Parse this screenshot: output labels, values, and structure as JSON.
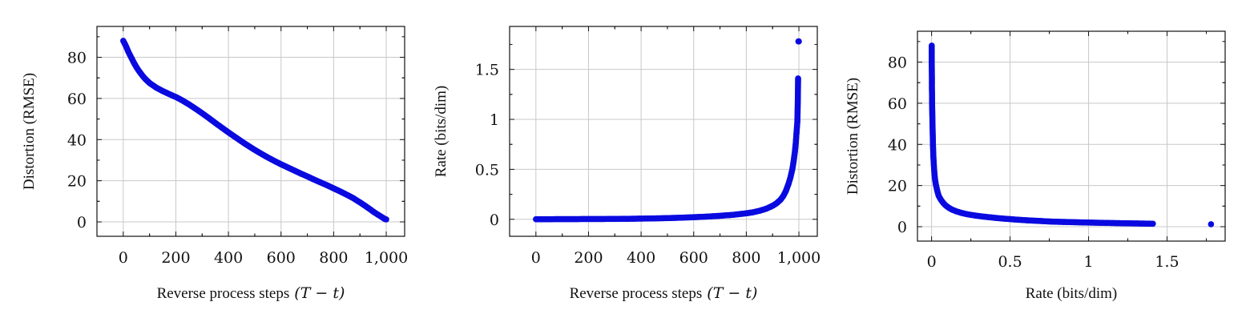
{
  "chart_data": [
    {
      "type": "scatter",
      "title": "",
      "xlabel": "Reverse process steps",
      "xlabel_math": "(T − t)",
      "ylabel": "Distortion (RMSE)",
      "xlim": [
        -100,
        1070
      ],
      "ylim": [
        -7,
        95
      ],
      "xticks": [
        0,
        200,
        400,
        600,
        800,
        1000
      ],
      "xtick_labels": [
        "0",
        "200",
        "400",
        "600",
        "800",
        "1,000"
      ],
      "yticks": [
        0,
        20,
        40,
        60,
        80
      ],
      "ytick_labels": [
        "0",
        "20",
        "40",
        "60",
        "80"
      ],
      "grid": true,
      "marker_color": "#0a0ae0",
      "series": [
        {
          "x": [
            0,
            10,
            20,
            30,
            40,
            50,
            60,
            70,
            80,
            90,
            100,
            125,
            150,
            175,
            200,
            225,
            250,
            275,
            300,
            325,
            350,
            375,
            400,
            425,
            450,
            475,
            500,
            525,
            550,
            575,
            600,
            625,
            650,
            675,
            700,
            725,
            750,
            775,
            800,
            825,
            850,
            875,
            900,
            920,
            940,
            955,
            970,
            980,
            990,
            995,
            1000
          ],
          "y": [
            88,
            85.5,
            82.5,
            80,
            77.5,
            75.2,
            73.3,
            71.6,
            70,
            68.7,
            67.5,
            65.3,
            63.6,
            62.1,
            60.7,
            59,
            57.1,
            55,
            52.8,
            50.5,
            48.1,
            45.8,
            43.5,
            41.3,
            39.1,
            37,
            35,
            33.1,
            31.3,
            29.6,
            28,
            26.5,
            25,
            23.5,
            22.1,
            20.6,
            19.2,
            17.8,
            16.3,
            14.8,
            13.2,
            11.5,
            9.5,
            7.8,
            6,
            4.6,
            3.4,
            2.6,
            1.8,
            1.4,
            1.2
          ]
        }
      ]
    },
    {
      "type": "scatter",
      "title": "",
      "xlabel": "Reverse process steps",
      "xlabel_math": "(T − t)",
      "ylabel": "Rate (bits/dim)",
      "xlim": [
        -100,
        1070
      ],
      "ylim": [
        -0.17,
        1.93
      ],
      "xticks": [
        0,
        200,
        400,
        600,
        800,
        1000
      ],
      "xtick_labels": [
        "0",
        "200",
        "400",
        "600",
        "800",
        "1,000"
      ],
      "yticks": [
        0,
        0.5,
        1,
        1.5
      ],
      "ytick_labels": [
        "0",
        "0.5",
        "1",
        "1.5"
      ],
      "grid": true,
      "marker_color": "#0a0ae0",
      "series": [
        {
          "x": [
            0,
            50,
            100,
            150,
            200,
            250,
            300,
            350,
            400,
            450,
            500,
            550,
            600,
            650,
            700,
            750,
            800,
            825,
            850,
            875,
            900,
            915,
            930,
            940,
            950,
            960,
            968,
            975,
            980,
            985,
            988,
            990,
            992,
            994,
            995,
            996,
            997,
            998,
            999,
            1000
          ],
          "y": [
            0.001,
            0.001,
            0.002,
            0.002,
            0.003,
            0.003,
            0.004,
            0.005,
            0.007,
            0.009,
            0.012,
            0.016,
            0.021,
            0.027,
            0.035,
            0.045,
            0.06,
            0.07,
            0.085,
            0.105,
            0.135,
            0.16,
            0.195,
            0.23,
            0.28,
            0.35,
            0.42,
            0.5,
            0.58,
            0.68,
            0.76,
            0.83,
            0.9,
            0.97,
            1.07,
            1.21,
            1.41,
            1.78,
            1.78,
            1.78
          ]
        }
      ]
    },
    {
      "type": "scatter",
      "title": "",
      "xlabel": "Rate (bits/dim)",
      "xlabel_math": "",
      "ylabel": "Distortion (RMSE)",
      "xlim": [
        -0.09,
        1.87
      ],
      "ylim": [
        -7,
        95
      ],
      "xticks": [
        0,
        0.5,
        1,
        1.5
      ],
      "xtick_labels": [
        "0",
        "0.5",
        "1",
        "1.5"
      ],
      "yticks": [
        0,
        20,
        40,
        60,
        80
      ],
      "ytick_labels": [
        "0",
        "20",
        "40",
        "60",
        "80"
      ],
      "grid": true,
      "marker_color": "#0a0ae0",
      "series": [
        {
          "x": [
            0.001,
            0.001,
            0.002,
            0.002,
            0.003,
            0.003,
            0.004,
            0.005,
            0.007,
            0.009,
            0.012,
            0.016,
            0.021,
            0.027,
            0.035,
            0.045,
            0.06,
            0.075,
            0.09,
            0.11,
            0.13,
            0.16,
            0.19,
            0.23,
            0.28,
            0.33,
            0.38,
            0.43,
            0.48,
            0.53,
            0.58,
            0.62,
            0.66,
            0.7,
            0.73,
            0.76,
            0.8,
            0.85,
            0.9,
            0.98,
            1.07,
            1.21,
            1.41,
            1.78
          ],
          "y": [
            88,
            80,
            72,
            67.5,
            63.6,
            60.7,
            57.1,
            52.8,
            45.8,
            39.1,
            33.1,
            28,
            23.5,
            20.6,
            17.8,
            15,
            13,
            11.5,
            10.3,
            9.2,
            8.3,
            7.4,
            6.7,
            6,
            5.4,
            4.9,
            4.5,
            4.1,
            3.8,
            3.5,
            3.25,
            3.05,
            2.9,
            2.75,
            2.6,
            2.5,
            2.4,
            2.3,
            2.2,
            2.05,
            1.9,
            1.7,
            1.45,
            1.2
          ]
        }
      ]
    }
  ]
}
